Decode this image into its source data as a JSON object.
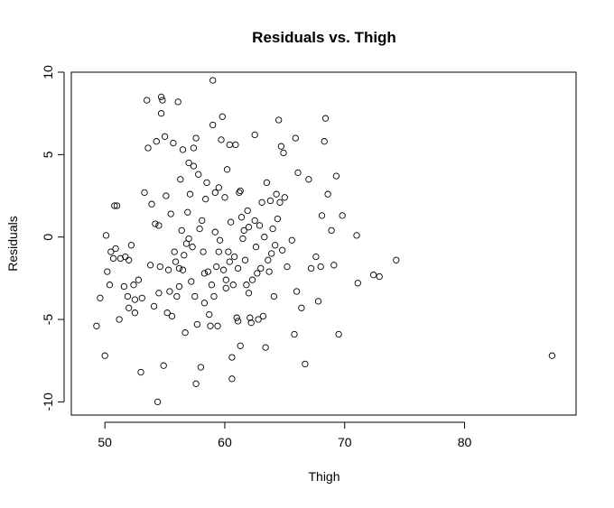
{
  "chart_data": {
    "type": "scatter",
    "title": "Residuals vs. Thigh",
    "xlabel": "Thigh",
    "ylabel": "Residuals",
    "xlim": [
      47.2,
      89.3
    ],
    "ylim": [
      -10.8,
      10.0
    ],
    "x_ticks": [
      50,
      60,
      70,
      80
    ],
    "y_ticks": [
      -10,
      -5,
      0,
      5,
      10
    ],
    "x_tick_labels": [
      "50",
      "60",
      "70",
      "80"
    ],
    "y_tick_labels": [
      "-10",
      "-5",
      "0",
      "5",
      "10"
    ],
    "grid": false,
    "legend": "none",
    "marker": "open-circle",
    "points": [
      [
        49.3,
        -5.4
      ],
      [
        49.6,
        -3.7
      ],
      [
        50.0,
        -7.2
      ],
      [
        50.1,
        0.1
      ],
      [
        50.2,
        -2.1
      ],
      [
        50.4,
        -2.9
      ],
      [
        50.5,
        -0.9
      ],
      [
        50.7,
        -1.3
      ],
      [
        50.8,
        1.9
      ],
      [
        50.9,
        -0.7
      ],
      [
        51.0,
        1.9
      ],
      [
        51.2,
        -5.0
      ],
      [
        51.3,
        -1.3
      ],
      [
        51.6,
        -3.0
      ],
      [
        51.7,
        -1.2
      ],
      [
        51.9,
        -3.6
      ],
      [
        52.0,
        -4.3
      ],
      [
        52.0,
        -1.4
      ],
      [
        52.2,
        -0.5
      ],
      [
        52.4,
        -2.9
      ],
      [
        52.5,
        -4.6
      ],
      [
        52.5,
        -3.8
      ],
      [
        52.8,
        -2.6
      ],
      [
        53.0,
        -8.2
      ],
      [
        53.1,
        -3.7
      ],
      [
        53.3,
        2.7
      ],
      [
        53.5,
        8.3
      ],
      [
        53.6,
        5.4
      ],
      [
        53.8,
        -1.7
      ],
      [
        53.9,
        2.0
      ],
      [
        54.1,
        -4.2
      ],
      [
        54.2,
        0.8
      ],
      [
        54.3,
        5.8
      ],
      [
        54.4,
        -10.0
      ],
      [
        54.5,
        0.7
      ],
      [
        54.5,
        -3.4
      ],
      [
        54.6,
        -1.8
      ],
      [
        54.7,
        7.5
      ],
      [
        54.7,
        8.5
      ],
      [
        54.8,
        8.3
      ],
      [
        54.9,
        -7.8
      ],
      [
        55.0,
        6.1
      ],
      [
        55.1,
        2.5
      ],
      [
        55.2,
        -4.6
      ],
      [
        55.3,
        -2.0
      ],
      [
        55.4,
        -3.3
      ],
      [
        55.5,
        1.4
      ],
      [
        55.6,
        -4.8
      ],
      [
        55.7,
        5.7
      ],
      [
        55.8,
        -0.9
      ],
      [
        55.9,
        -1.5
      ],
      [
        56.0,
        -3.6
      ],
      [
        56.1,
        8.2
      ],
      [
        56.2,
        -1.9
      ],
      [
        56.2,
        -3.0
      ],
      [
        56.3,
        3.5
      ],
      [
        56.4,
        0.4
      ],
      [
        56.5,
        5.3
      ],
      [
        56.5,
        -2.0
      ],
      [
        56.6,
        -1.1
      ],
      [
        56.7,
        -5.8
      ],
      [
        56.8,
        -0.4
      ],
      [
        56.9,
        1.5
      ],
      [
        57.0,
        4.5
      ],
      [
        57.0,
        -0.1
      ],
      [
        57.1,
        2.6
      ],
      [
        57.2,
        -2.7
      ],
      [
        57.3,
        -0.6
      ],
      [
        57.4,
        4.3
      ],
      [
        57.4,
        5.4
      ],
      [
        57.5,
        -3.6
      ],
      [
        57.6,
        6.0
      ],
      [
        57.6,
        -8.9
      ],
      [
        57.7,
        -5.3
      ],
      [
        57.8,
        3.8
      ],
      [
        57.9,
        0.5
      ],
      [
        58.0,
        -7.9
      ],
      [
        58.1,
        1.0
      ],
      [
        58.2,
        -0.9
      ],
      [
        58.3,
        -2.2
      ],
      [
        58.3,
        -4.0
      ],
      [
        58.4,
        2.3
      ],
      [
        58.5,
        3.3
      ],
      [
        58.6,
        -2.1
      ],
      [
        58.7,
        -4.7
      ],
      [
        58.8,
        -5.4
      ],
      [
        58.9,
        -2.9
      ],
      [
        59.0,
        6.8
      ],
      [
        59.0,
        9.5
      ],
      [
        59.1,
        -3.6
      ],
      [
        59.2,
        2.7
      ],
      [
        59.2,
        0.3
      ],
      [
        59.3,
        -1.8
      ],
      [
        59.4,
        -5.4
      ],
      [
        59.5,
        3.0
      ],
      [
        59.5,
        -0.9
      ],
      [
        59.6,
        -0.2
      ],
      [
        59.7,
        5.9
      ],
      [
        59.8,
        7.3
      ],
      [
        59.9,
        -2.0
      ],
      [
        60.0,
        2.4
      ],
      [
        60.1,
        -2.6
      ],
      [
        60.1,
        -3.1
      ],
      [
        60.2,
        4.1
      ],
      [
        60.3,
        -0.9
      ],
      [
        60.4,
        -1.5
      ],
      [
        60.4,
        5.6
      ],
      [
        60.5,
        0.9
      ],
      [
        60.6,
        -7.3
      ],
      [
        60.6,
        -8.6
      ],
      [
        60.7,
        -2.9
      ],
      [
        60.8,
        -1.2
      ],
      [
        60.9,
        5.6
      ],
      [
        61.0,
        -4.9
      ],
      [
        61.1,
        -5.1
      ],
      [
        61.1,
        -1.9
      ],
      [
        61.2,
        2.7
      ],
      [
        61.3,
        2.8
      ],
      [
        61.3,
        -6.6
      ],
      [
        61.4,
        1.2
      ],
      [
        61.5,
        -0.1
      ],
      [
        61.6,
        0.4
      ],
      [
        61.7,
        -1.4
      ],
      [
        61.8,
        -2.9
      ],
      [
        61.9,
        1.6
      ],
      [
        62.0,
        0.6
      ],
      [
        62.0,
        -3.4
      ],
      [
        62.1,
        -4.9
      ],
      [
        62.2,
        -5.2
      ],
      [
        62.3,
        -2.6
      ],
      [
        62.5,
        1.0
      ],
      [
        62.5,
        6.2
      ],
      [
        62.6,
        -0.6
      ],
      [
        62.7,
        -2.2
      ],
      [
        62.8,
        -5.0
      ],
      [
        62.9,
        0.7
      ],
      [
        63.0,
        -1.9
      ],
      [
        63.1,
        2.1
      ],
      [
        63.2,
        -4.8
      ],
      [
        63.3,
        0.0
      ],
      [
        63.4,
        -6.7
      ],
      [
        63.5,
        3.3
      ],
      [
        63.6,
        -1.4
      ],
      [
        63.7,
        -2.1
      ],
      [
        63.8,
        2.2
      ],
      [
        63.9,
        -1.0
      ],
      [
        64.0,
        0.5
      ],
      [
        64.1,
        -3.6
      ],
      [
        64.2,
        -0.5
      ],
      [
        64.3,
        2.6
      ],
      [
        64.4,
        1.1
      ],
      [
        64.5,
        7.1
      ],
      [
        64.6,
        2.1
      ],
      [
        64.7,
        5.5
      ],
      [
        64.8,
        -0.8
      ],
      [
        64.9,
        5.1
      ],
      [
        65.0,
        2.4
      ],
      [
        65.2,
        -1.8
      ],
      [
        65.6,
        -0.2
      ],
      [
        65.8,
        -5.9
      ],
      [
        65.9,
        6.0
      ],
      [
        66.0,
        -3.3
      ],
      [
        66.1,
        3.9
      ],
      [
        66.4,
        -4.3
      ],
      [
        66.7,
        -7.7
      ],
      [
        67.0,
        3.5
      ],
      [
        67.2,
        -1.9
      ],
      [
        67.6,
        -1.2
      ],
      [
        67.8,
        -3.9
      ],
      [
        68.0,
        -1.8
      ],
      [
        68.1,
        1.3
      ],
      [
        68.3,
        5.8
      ],
      [
        68.4,
        7.2
      ],
      [
        68.6,
        2.6
      ],
      [
        68.9,
        0.4
      ],
      [
        69.1,
        -1.7
      ],
      [
        69.3,
        3.7
      ],
      [
        69.5,
        -5.9
      ],
      [
        69.8,
        1.3
      ],
      [
        71.0,
        0.1
      ],
      [
        71.1,
        -2.8
      ],
      [
        72.4,
        -2.3
      ],
      [
        72.9,
        -2.4
      ],
      [
        74.3,
        -1.4
      ],
      [
        87.3,
        -7.2
      ]
    ]
  }
}
